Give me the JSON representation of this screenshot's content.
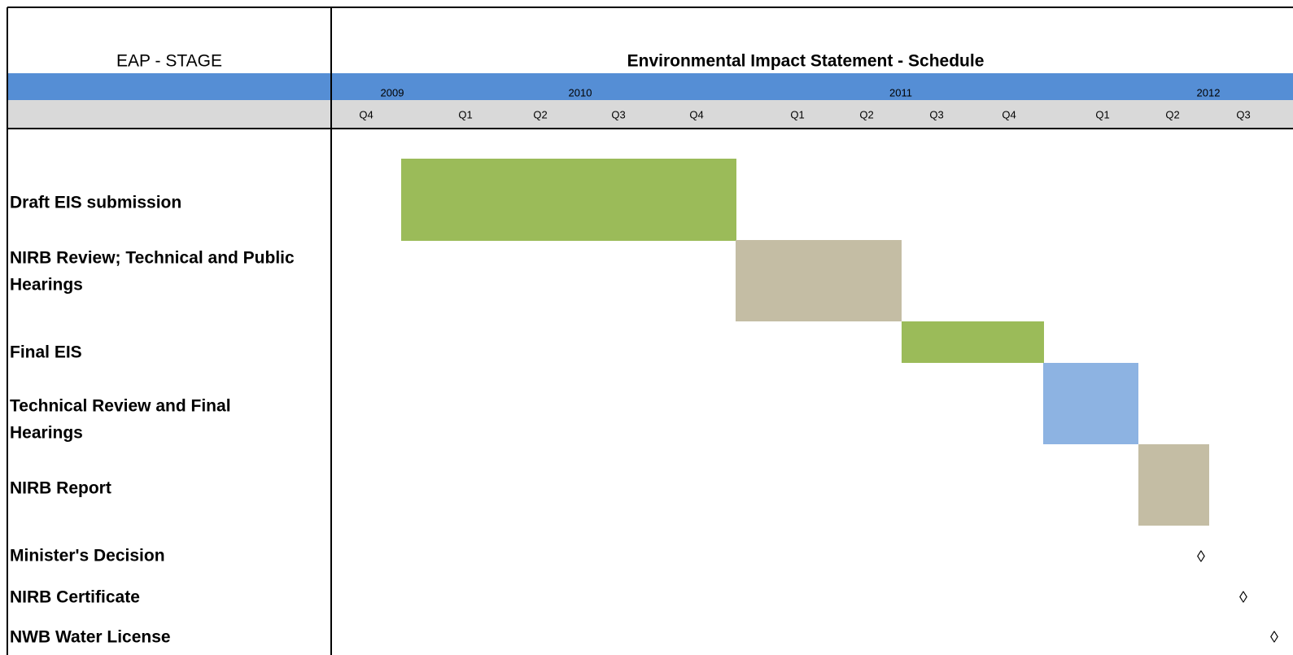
{
  "header": {
    "stage_label": "EAP - STAGE",
    "title": "Environmental Impact Statement - Schedule"
  },
  "years": [
    "2009",
    "2010",
    "2011",
    "2012"
  ],
  "quarters": [
    "Q4",
    "Q1",
    "Q2",
    "Q3",
    "Q4",
    "Q1",
    "Q2",
    "Q3",
    "Q4",
    "Q1",
    "Q2",
    "Q3"
  ],
  "stages": [
    {
      "lines": [
        "Draft EIS submission"
      ]
    },
    {
      "lines": [
        "NIRB Review; Technical and Public",
        "Hearings"
      ]
    },
    {
      "lines": [
        "Final EIS"
      ]
    },
    {
      "lines": [
        "Technical Review and Final",
        "Hearings"
      ]
    },
    {
      "lines": [
        "NIRB Report"
      ]
    },
    {
      "lines": [
        "Minister's Decision"
      ],
      "marker": "◊"
    },
    {
      "lines": [
        "NIRB Certificate"
      ],
      "marker": "◊"
    },
    {
      "lines": [
        "NWB Water License"
      ],
      "marker": "◊"
    }
  ]
}
